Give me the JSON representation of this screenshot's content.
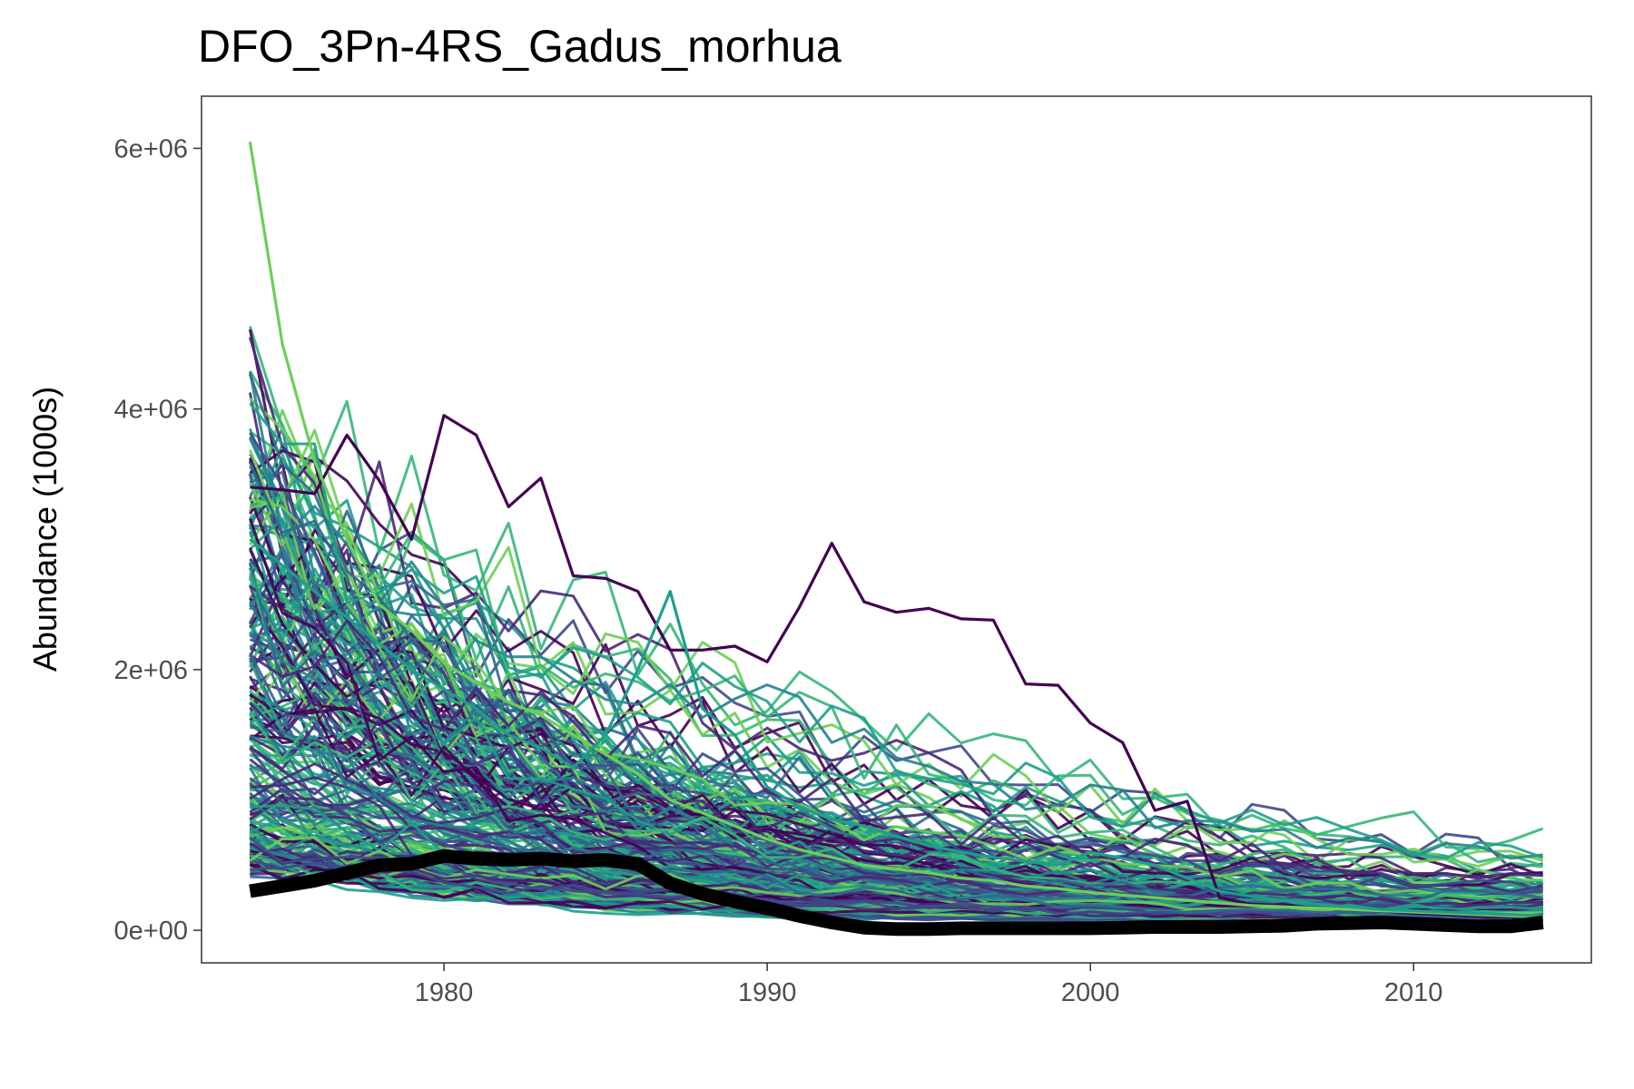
{
  "chart_data": {
    "type": "line",
    "title": "DFO_3Pn-4RS_Gadus_morhua",
    "xlabel": "",
    "ylabel": "Abundance (1000s)",
    "xlim": [
      1972.5,
      2015.5
    ],
    "ylim": [
      -250000,
      6400000
    ],
    "x_ticks": [
      1980,
      1990,
      2000,
      2010
    ],
    "x_tick_labels": [
      "1980",
      "1990",
      "2000",
      "2010"
    ],
    "y_ticks": [
      0,
      2000000,
      4000000,
      6000000
    ],
    "y_tick_labels": [
      "0e+00",
      "2e+06",
      "4e+06",
      "6e+06"
    ],
    "grid": false,
    "legend": "none",
    "ensemble_colors": [
      "#440154",
      "#482878",
      "#3e4a89",
      "#31688e",
      "#26828e",
      "#1f9e89",
      "#35b779",
      "#6ece58"
    ],
    "highlight_series": [
      {
        "name": "",
        "color": "#440154",
        "x": [
          1974,
          1975,
          1976,
          1977,
          1978,
          1979,
          1980,
          1981,
          1982,
          1983,
          1984,
          1985,
          1986,
          1987,
          1988,
          1989,
          1990,
          1991,
          1992,
          1993,
          1994,
          1995,
          1996,
          1997,
          1998,
          1999,
          2000,
          2001,
          2002,
          2003,
          2004,
          2005,
          2006,
          2007,
          2008,
          2009,
          2010,
          2011,
          2012,
          2013,
          2014
        ],
        "values": [
          3400000,
          3380000,
          3350000,
          3800000,
          3450000,
          3000000,
          3950000,
          3800000,
          3250000,
          3470000,
          2720000,
          2700000,
          2600000,
          2150000,
          2150000,
          2180000,
          2060000,
          2480000,
          2970000,
          2520000,
          2440000,
          2470000,
          2390000,
          2380000,
          1890000,
          1880000,
          1590000,
          1440000,
          920000,
          990000,
          250000,
          200000,
          190000,
          170000,
          160000,
          150000,
          130000,
          120000,
          110000,
          100000,
          90000
        ]
      },
      {
        "name": "",
        "color": "#6ece58",
        "x": [
          1974,
          1975,
          1976,
          1977,
          1978,
          1979,
          1980,
          1981,
          1982,
          1983,
          1984,
          1985,
          1986,
          1987,
          1988,
          1989,
          1990,
          1991,
          1992,
          1993,
          1994,
          1995,
          1996,
          1997,
          1998,
          1999,
          2000,
          2001,
          2002,
          2003,
          2004,
          2005,
          2006,
          2007,
          2008,
          2009,
          2010,
          2011,
          2012,
          2013,
          2014
        ],
        "values": [
          6050000,
          4500000,
          3600000,
          3000000,
          2500000,
          2300000,
          2050000,
          1900000,
          1750000,
          1650000,
          1500000,
          1350000,
          1200000,
          1000000,
          900000,
          800000,
          700000,
          620000,
          560000,
          500000,
          470000,
          440000,
          400000,
          380000,
          340000,
          320000,
          290000,
          270000,
          250000,
          230000,
          210000,
          190000,
          180000,
          170000,
          160000,
          150000,
          140000,
          130000,
          120000,
          110000,
          100000
        ]
      },
      {
        "name": "",
        "color": "#1f9e89",
        "x": [
          1974,
          1975,
          1976,
          1977,
          1978,
          1979,
          1980,
          1981,
          1982,
          1983,
          1984,
          1985,
          1986,
          1987,
          1988,
          1989,
          1990,
          1991,
          1992,
          1993,
          1994,
          1995,
          1996,
          1997,
          1998,
          1999,
          2000,
          2001,
          2002,
          2003,
          2004,
          2005,
          2006,
          2007,
          2008,
          2009,
          2010,
          2011,
          2012,
          2013,
          2014
        ],
        "values": [
          3000000,
          2800000,
          2600000,
          2400000,
          2200000,
          2000000,
          1850000,
          1700000,
          1500000,
          1400000,
          1250000,
          1500000,
          2000000,
          2600000,
          1700000,
          1500000,
          1100000,
          950000,
          850000,
          800000,
          720000,
          650000,
          600000,
          560000,
          530000,
          500000,
          600000,
          550000,
          500000,
          400000,
          300000,
          260000,
          230000,
          200000,
          180000,
          160000,
          150000,
          140000,
          130000,
          120000,
          110000
        ]
      }
    ],
    "reference_series": {
      "name": "",
      "color": "#000000",
      "x": [
        1974,
        1975,
        1976,
        1977,
        1978,
        1979,
        1980,
        1981,
        1982,
        1983,
        1984,
        1985,
        1986,
        1987,
        1988,
        1989,
        1990,
        1991,
        1992,
        1993,
        1994,
        1995,
        1996,
        1997,
        1998,
        1999,
        2000,
        2001,
        2002,
        2003,
        2004,
        2005,
        2006,
        2007,
        2008,
        2009,
        2010,
        2011,
        2012,
        2013,
        2014
      ],
      "values": [
        300000,
        340000,
        380000,
        440000,
        500000,
        510000,
        570000,
        550000,
        540000,
        550000,
        530000,
        540000,
        510000,
        360000,
        280000,
        220000,
        170000,
        110000,
        60000,
        20000,
        10000,
        10000,
        15000,
        15000,
        15000,
        15000,
        15000,
        20000,
        25000,
        25000,
        25000,
        30000,
        35000,
        50000,
        55000,
        60000,
        50000,
        40000,
        30000,
        30000,
        60000
      ]
    }
  }
}
